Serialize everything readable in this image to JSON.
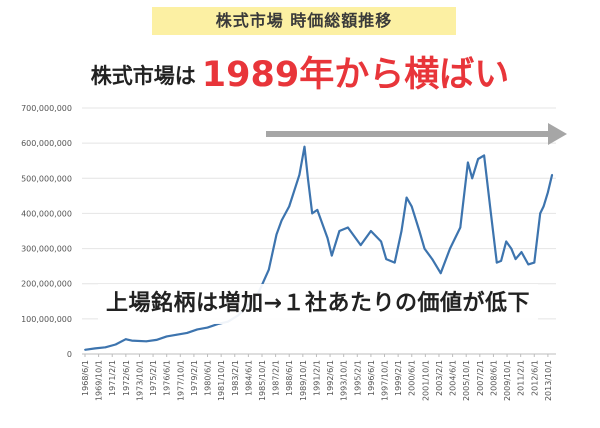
{
  "header": {
    "title": "株式市場 時価総額推移",
    "headline_prefix": "株式市場は",
    "headline_accent": "1989年から横ばい"
  },
  "caption": "上場銘柄は増加→１社あたりの価値が低下",
  "colors": {
    "line": "#3d74ae",
    "accent": "#e8353a",
    "arrow": "#a6a6a6",
    "title_bg": "#fcf0a3"
  },
  "chart_data": {
    "type": "line",
    "ylim": [
      0,
      700000000
    ],
    "yticks": [
      "0",
      "100,000,000",
      "200,000,000",
      "300,000,000",
      "400,000,000",
      "500,000,000",
      "600,000,000",
      "700,000,000"
    ],
    "xticks": [
      "1968/6/1",
      "1969/10/1",
      "1971/2/1",
      "1972/6/1",
      "1973/10/1",
      "1975/2/1",
      "1976/6/1",
      "1977/10/1",
      "1979/2/1",
      "1980/6/1",
      "1981/10/1",
      "1983/2/1",
      "1984/6/1",
      "1985/10/1",
      "1987/2/1",
      "1988/6/1",
      "1989/10/1",
      "1991/2/1",
      "1992/6/1",
      "1993/10/1",
      "1995/2/1",
      "1996/6/1",
      "1997/10/1",
      "1999/2/1",
      "2000/6/1",
      "2001/10/1",
      "2003/2/1",
      "2004/6/1",
      "2005/10/1",
      "2007/2/1",
      "2008/6/1",
      "2009/10/1",
      "2011/2/1",
      "2012/6/1",
      "2013/10/1"
    ],
    "series": [
      {
        "x": [
          "1968/6",
          "1969/6",
          "1970/6",
          "1971/6",
          "1972/6",
          "1973/1",
          "1974/6",
          "1975/6",
          "1976/6",
          "1977/6",
          "1978/6",
          "1979/6",
          "1980/6",
          "1981/6",
          "1982/6",
          "1983/6",
          "1984/6",
          "1985/6",
          "1986/6",
          "1987/3",
          "1987/9",
          "1988/6",
          "1989/6",
          "1989/12",
          "1990/4",
          "1990/9",
          "1991/3",
          "1992/3",
          "1992/8",
          "1993/5",
          "1994/3",
          "1995/6",
          "1996/6",
          "1997/6",
          "1997/12",
          "1998/10",
          "1999/6",
          "1999/12",
          "2000/6",
          "2001/3",
          "2001/9",
          "2002/6",
          "2003/4",
          "2004/3",
          "2005/3",
          "2005/12",
          "2006/5",
          "2006/12",
          "2007/7",
          "2008/3",
          "2008/10",
          "2009/3",
          "2009/9",
          "2010/3",
          "2010/8",
          "2011/3",
          "2011/11",
          "2012/6",
          "2013/1",
          "2013/5",
          "2013/10",
          "2014/3"
        ],
        "values": [
          12000000,
          16000000,
          19000000,
          27000000,
          42000000,
          38000000,
          36000000,
          40000000,
          50000000,
          55000000,
          60000000,
          70000000,
          75000000,
          85000000,
          92000000,
          110000000,
          140000000,
          175000000,
          240000000,
          340000000,
          380000000,
          420000000,
          510000000,
          590000000,
          500000000,
          400000000,
          410000000,
          330000000,
          280000000,
          350000000,
          360000000,
          310000000,
          350000000,
          320000000,
          270000000,
          260000000,
          350000000,
          445000000,
          420000000,
          350000000,
          300000000,
          270000000,
          230000000,
          300000000,
          360000000,
          545000000,
          500000000,
          555000000,
          565000000,
          400000000,
          260000000,
          265000000,
          320000000,
          300000000,
          270000000,
          290000000,
          255000000,
          260000000,
          400000000,
          420000000,
          460000000,
          510000000
        ]
      }
    ]
  }
}
